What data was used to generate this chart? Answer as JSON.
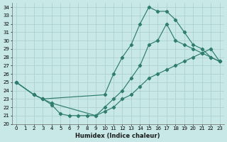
{
  "xlabel": "Humidex (Indice chaleur)",
  "ylabel": "",
  "xlim": [
    -0.5,
    23.5
  ],
  "ylim": [
    20,
    34.5
  ],
  "xticks": [
    0,
    1,
    2,
    3,
    4,
    5,
    6,
    7,
    8,
    9,
    10,
    11,
    12,
    13,
    14,
    15,
    16,
    17,
    18,
    19,
    20,
    21,
    22,
    23
  ],
  "yticks": [
    20,
    21,
    22,
    23,
    24,
    25,
    26,
    27,
    28,
    29,
    30,
    31,
    32,
    33,
    34
  ],
  "background_color": "#c8e8e8",
  "grid_color": "#b8d8d8",
  "line_color": "#2e7d6e",
  "curve1_x": [
    0,
    2,
    3,
    4,
    5,
    6,
    7,
    8,
    9,
    10,
    11,
    12,
    13,
    14,
    15,
    16,
    17,
    18,
    19,
    20,
    21,
    22,
    23
  ],
  "curve1_y": [
    25,
    23.5,
    23.0,
    22.3,
    21.2,
    21.0,
    21.0,
    21.0,
    21.0,
    21.5,
    22.0,
    23.0,
    23.5,
    24.5,
    25.5,
    26.0,
    26.5,
    27.0,
    27.5,
    28.0,
    28.5,
    29.0,
    27.5
  ],
  "curve2_x": [
    0,
    2,
    3,
    10,
    11,
    12,
    13,
    14,
    15,
    16,
    17,
    18,
    19,
    20,
    21,
    22,
    23
  ],
  "curve2_y": [
    25,
    23.5,
    23.0,
    23.5,
    26.0,
    28.0,
    29.5,
    32.0,
    34.0,
    33.5,
    33.5,
    32.5,
    31.0,
    29.5,
    29.0,
    28.0,
    27.5
  ],
  "curve3_x": [
    0,
    2,
    3,
    4,
    9,
    10,
    11,
    12,
    13,
    14,
    15,
    16,
    17,
    18,
    19,
    20,
    21,
    22,
    23
  ],
  "curve3_y": [
    25,
    23.5,
    23.0,
    22.5,
    21.0,
    22.0,
    23.0,
    24.0,
    25.5,
    27.0,
    29.5,
    30.0,
    32.0,
    30.0,
    29.5,
    29.0,
    28.5,
    28.0,
    27.5
  ]
}
